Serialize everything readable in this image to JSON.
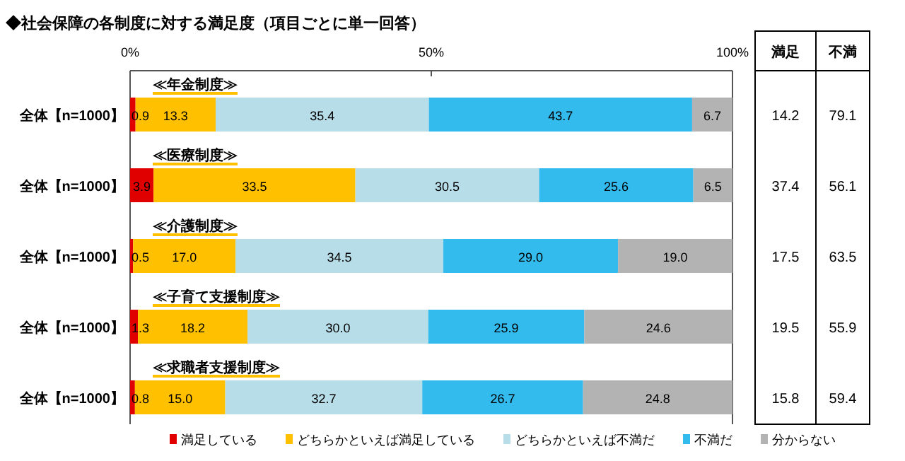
{
  "chart_data": [
    {
      "type": "bar",
      "orientation": "horizontal",
      "stacked": true,
      "title": "◆社会保障の各制度に対する満足度（項目ごとに単一回答）",
      "categories": [
        "全体【n=1000】",
        "全体【n=1000】",
        "全体【n=1000】",
        "全体【n=1000】",
        "全体【n=1000】"
      ],
      "series": [
        {
          "name": "満足している",
          "color": "#e00000",
          "values": [
            0.9,
            3.9,
            0.5,
            1.3,
            0.8
          ],
          "value_labels": [
            "0.9",
            "3.9",
            "0.5",
            "1.3",
            "0.8"
          ]
        },
        {
          "name": "どちらかといえば満足している",
          "color": "#ffc000",
          "values": [
            13.3,
            33.5,
            17.0,
            18.2,
            15.0
          ],
          "value_labels": [
            "13.3",
            "33.5",
            "17.0",
            "18.2",
            "15.0"
          ]
        },
        {
          "name": "どちらかといえば不満だ",
          "color": "#b7dde8",
          "values": [
            35.4,
            30.5,
            34.5,
            30.0,
            32.7
          ],
          "value_labels": [
            "35.4",
            "30.5",
            "34.5",
            "30.0",
            "32.7"
          ]
        },
        {
          "name": "不満だ",
          "color": "#33bbee",
          "values": [
            43.7,
            25.6,
            29.0,
            25.9,
            26.7
          ],
          "value_labels": [
            "43.7",
            "25.6",
            "29.0",
            "25.9",
            "26.7"
          ]
        },
        {
          "name": "分からない",
          "color": "#b3b3b3",
          "values": [
            6.7,
            6.5,
            19.0,
            24.6,
            24.8
          ],
          "value_labels": [
            "6.7",
            "6.5",
            "19.0",
            "24.6",
            "24.8"
          ]
        }
      ],
      "xlim": [
        0,
        100
      ],
      "xticks": [
        {
          "value": 0,
          "label": "0%"
        },
        {
          "value": 50,
          "label": "50%"
        },
        {
          "value": 100,
          "label": "100%"
        }
      ],
      "annotations": [
        "≪年金制度≫",
        "≪医療制度≫",
        "≪介護制度≫",
        "≪子育て支援制度≫",
        "≪求職者支援制度≫"
      ],
      "legend": "bottom",
      "grid": false
    },
    {
      "type": "other",
      "categories": [
        "満足",
        "不満"
      ],
      "cells": [
        [
          "14.2",
          "79.1"
        ],
        [
          "37.4",
          "56.1"
        ],
        [
          "17.5",
          "63.5"
        ],
        [
          "19.5",
          "55.9"
        ],
        [
          "15.8",
          "59.4"
        ]
      ]
    }
  ]
}
